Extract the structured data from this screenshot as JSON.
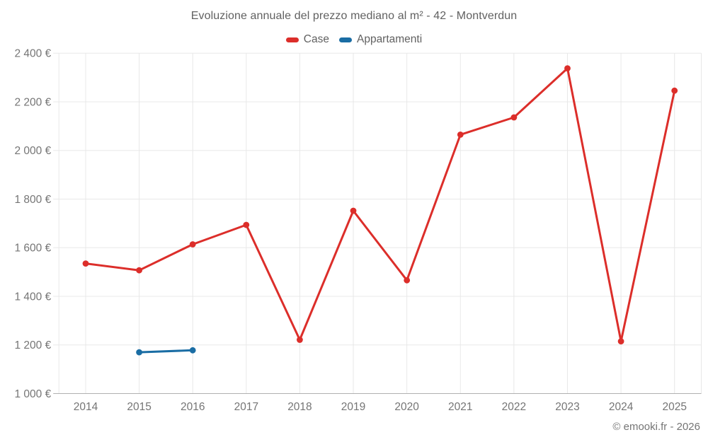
{
  "page": {
    "copyright": "© emooki.fr - 2026"
  },
  "chart_data": {
    "type": "line",
    "title": "Evoluzione annuale del prezzo mediano al m² - 42 - Montverdun",
    "categories": [
      "2014",
      "2015",
      "2016",
      "2017",
      "2018",
      "2019",
      "2020",
      "2021",
      "2022",
      "2023",
      "2024",
      "2025"
    ],
    "series": [
      {
        "name": "Case",
        "color": "#dc2e2a",
        "values": [
          1535,
          1507,
          1614,
          1694,
          1221,
          1752,
          1466,
          2065,
          2136,
          2338,
          1215,
          2246
        ]
      },
      {
        "name": "Appartamenti",
        "color": "#1a6da4",
        "values": [
          null,
          1170,
          1178,
          null,
          null,
          null,
          null,
          null,
          null,
          null,
          null,
          null
        ]
      }
    ],
    "ylim": [
      1000,
      2400
    ],
    "ytick_step": 200,
    "ytick_suffix": " €",
    "grid": true,
    "legend_position": "top",
    "xlabel": "",
    "ylabel": ""
  },
  "style": {
    "axis_label_color": "#757575",
    "title_color": "#616161",
    "grid_color": "#e8e8e8",
    "axis_line_color": "#b0b0b0",
    "background": "#ffffff"
  }
}
